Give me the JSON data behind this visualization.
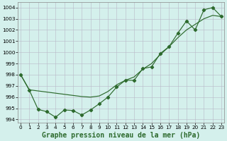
{
  "line1_x": [
    0,
    1,
    2,
    3,
    4,
    5,
    6,
    7,
    8,
    9,
    10,
    11,
    12,
    13,
    14,
    15,
    16,
    17,
    18,
    19,
    20,
    21,
    22,
    23
  ],
  "line1_y": [
    998.0,
    996.65,
    996.55,
    996.45,
    996.35,
    996.25,
    996.15,
    996.05,
    996.0,
    996.1,
    996.5,
    997.1,
    997.5,
    997.8,
    998.5,
    999.0,
    999.8,
    1000.5,
    1001.3,
    1002.0,
    1002.5,
    1003.0,
    1003.3,
    1003.2
  ],
  "line2_x": [
    0,
    1,
    2,
    3,
    4,
    5,
    6,
    7,
    8,
    9,
    10,
    11,
    12,
    13,
    14,
    15,
    16,
    17,
    18,
    19,
    20,
    21,
    22,
    23
  ],
  "line2_y": [
    998.0,
    996.6,
    994.9,
    994.7,
    994.2,
    994.85,
    994.8,
    994.4,
    994.85,
    995.4,
    996.0,
    996.9,
    997.5,
    997.5,
    998.55,
    998.7,
    999.9,
    1000.5,
    1001.7,
    1002.8,
    1002.0,
    1003.8,
    1004.0,
    1003.2
  ],
  "line_color": "#2d6a2d",
  "marker": "D",
  "marker_size": 2.2,
  "bg_color": "#d4f0ec",
  "grid_color": "#b8b8c8",
  "xlabel": "Graphe pression niveau de la mer (hPa)",
  "xlabel_fontsize": 7.0,
  "ylabel_ticks": [
    994,
    995,
    996,
    997,
    998,
    999,
    1000,
    1001,
    1002,
    1003,
    1004
  ],
  "xtick_labels": [
    "0",
    "1",
    "2",
    "3",
    "4",
    "5",
    "6",
    "7",
    "8",
    "9",
    "10",
    "11",
    "12",
    "13",
    "14",
    "15",
    "16",
    "17",
    "18",
    "19",
    "20",
    "21",
    "22",
    "23"
  ],
  "ylim": [
    993.7,
    1004.5
  ],
  "xlim": [
    -0.3,
    23.3
  ],
  "tick_fontsize": 5.2,
  "linewidth": 0.85
}
